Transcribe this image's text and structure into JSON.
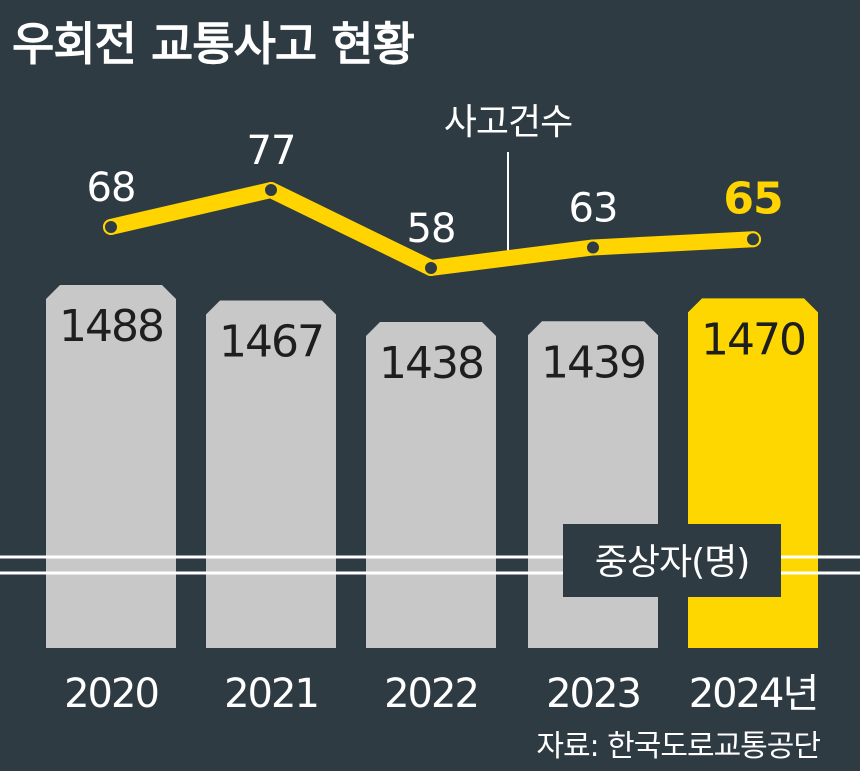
{
  "title": "우회전 교통사고 현황",
  "source": "자료: 한국도로교통공단",
  "colors": {
    "background": "#2f3b42",
    "bar_default": "#c8c8c8",
    "bar_highlight": "#ffd700",
    "line": "#ffd400",
    "text_light": "#ffffff",
    "text_dark": "#1e1e1e",
    "legend_box": "#2f3b42"
  },
  "chart_data": [
    {
      "type": "bar",
      "name_label": "중상자(명)",
      "categories": [
        "2020",
        "2021",
        "2022",
        "2023",
        "2024년"
      ],
      "values": [
        1488,
        1467,
        1438,
        1439,
        1470
      ],
      "highlight_index": 4
    },
    {
      "type": "line",
      "name_label": "사고건수",
      "categories": [
        "2020",
        "2021",
        "2022",
        "2023",
        "2024년"
      ],
      "values": [
        68,
        77,
        58,
        63,
        65
      ],
      "highlight_index": 4
    }
  ]
}
